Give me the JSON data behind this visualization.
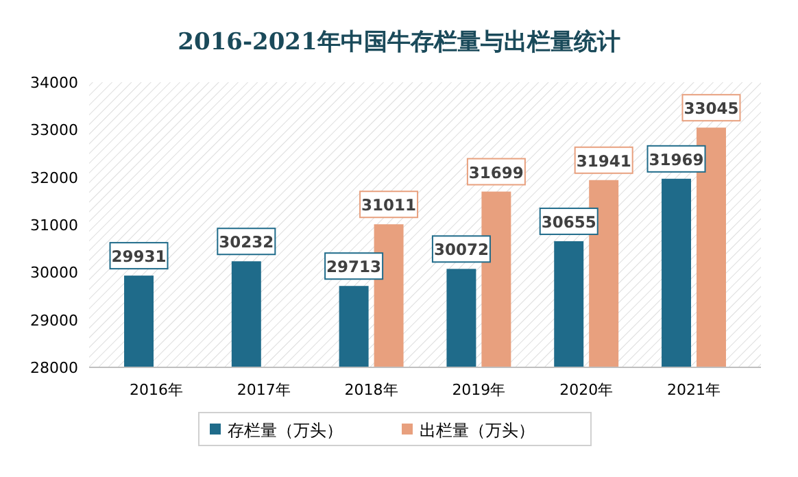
{
  "chart_data": {
    "type": "bar",
    "title": "2016-2021年中国牛存栏量与出栏量统计",
    "categories": [
      "2016年",
      "2017年",
      "2018年",
      "2019年",
      "2020年",
      "2021年"
    ],
    "series": [
      {
        "name": "存栏量（万头）",
        "color": "#1f6b8a",
        "values": [
          29931,
          30232,
          29713,
          30072,
          30655,
          31969
        ]
      },
      {
        "name": "出栏量（万头）",
        "color": "#e8a07e",
        "values": [
          null,
          null,
          31011,
          31699,
          31941,
          33045
        ]
      }
    ],
    "ylim": [
      28000,
      34000
    ],
    "yticks": [
      28000,
      29000,
      30000,
      31000,
      32000,
      33000,
      34000
    ],
    "data_labels": true,
    "legend": "bottom",
    "grid": false
  }
}
